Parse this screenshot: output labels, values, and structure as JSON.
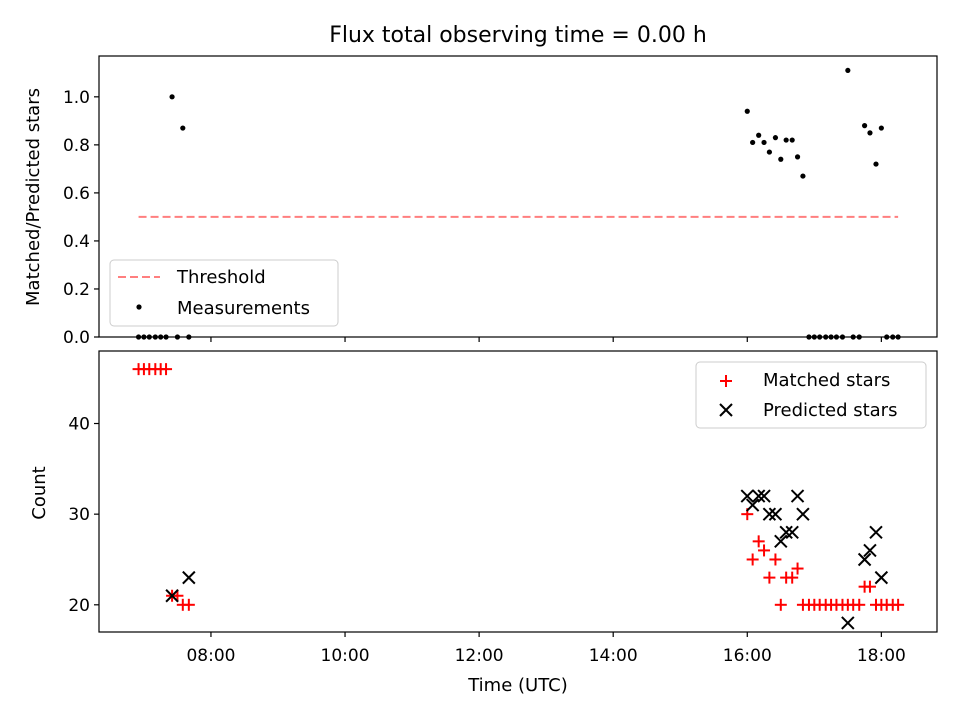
{
  "title": "Flux total observing time = 0.00 h",
  "colors": {
    "matched": "#ff0000",
    "predicted": "#000000",
    "threshold": "#ff7f7f",
    "measure": "#000000"
  },
  "chart_data": [
    {
      "type": "scatter",
      "ylabel": "Matched/Predicted stars",
      "ylim": [
        0,
        1.17
      ],
      "yticks": [
        "0.0",
        "0.2",
        "0.4",
        "0.6",
        "0.8",
        "1.0"
      ],
      "legend": {
        "position": "lower-left",
        "entries": [
          "Threshold",
          "Measurements"
        ]
      },
      "threshold": {
        "name": "Threshold",
        "value": 0.5,
        "x_start": 6.92,
        "x_end": 18.25
      },
      "series": [
        {
          "name": "Measurements",
          "x": [
            6.92,
            7.0,
            7.08,
            7.17,
            7.25,
            7.33,
            7.42,
            7.5,
            7.58,
            7.67,
            16.0,
            16.08,
            16.17,
            16.25,
            16.33,
            16.42,
            16.5,
            16.58,
            16.67,
            16.75,
            16.83,
            16.92,
            17.0,
            17.08,
            17.17,
            17.25,
            17.33,
            17.42,
            17.5,
            17.58,
            17.67,
            17.75,
            17.83,
            17.92,
            18.0,
            18.08,
            18.17,
            18.25
          ],
          "y": [
            0,
            0,
            0,
            0,
            0,
            0,
            1.0,
            0,
            0.87,
            0,
            0.94,
            0.81,
            0.84,
            0.81,
            0.77,
            0.83,
            0.74,
            0.82,
            0.82,
            0.75,
            0.67,
            0,
            0,
            0,
            0,
            0,
            0,
            0,
            1.11,
            0,
            0,
            0.88,
            0.85,
            0.72,
            0.87,
            0,
            0,
            0
          ]
        }
      ]
    },
    {
      "type": "scatter",
      "xlabel": "Time (UTC)",
      "ylabel": "Count",
      "xlim": [
        6.33,
        18.83
      ],
      "ylim": [
        17,
        48
      ],
      "xticks": [
        "08:00",
        "10:00",
        "12:00",
        "14:00",
        "16:00",
        "18:00"
      ],
      "yticks": [
        "20",
        "30",
        "40"
      ],
      "legend": {
        "position": "top-right",
        "entries": [
          "Matched stars",
          "Predicted stars"
        ]
      },
      "series": [
        {
          "name": "Matched stars",
          "x": [
            6.92,
            7.0,
            7.08,
            7.17,
            7.25,
            7.33,
            7.42,
            7.5,
            7.58,
            7.67,
            16.0,
            16.08,
            16.17,
            16.25,
            16.33,
            16.42,
            16.5,
            16.58,
            16.67,
            16.75,
            16.83,
            16.92,
            17.0,
            17.08,
            17.17,
            17.25,
            17.33,
            17.42,
            17.5,
            17.58,
            17.67,
            17.75,
            17.83,
            17.92,
            18.0,
            18.08,
            18.17,
            18.25
          ],
          "y": [
            46,
            46,
            46,
            46,
            46,
            46,
            21,
            21,
            20,
            20,
            30,
            25,
            27,
            26,
            23,
            25,
            20,
            23,
            23,
            24,
            20,
            20,
            20,
            20,
            20,
            20,
            20,
            20,
            20,
            20,
            20,
            22,
            22,
            20,
            20,
            20,
            20,
            20
          ]
        },
        {
          "name": "Predicted stars",
          "x": [
            7.42,
            7.67,
            16.0,
            16.08,
            16.17,
            16.25,
            16.33,
            16.42,
            16.5,
            16.58,
            16.67,
            16.75,
            16.83,
            17.5,
            17.75,
            17.83,
            17.92,
            18.0
          ],
          "y": [
            21,
            23,
            32,
            31,
            32,
            32,
            30,
            30,
            27,
            28,
            28,
            32,
            30,
            18,
            25,
            26,
            28,
            23
          ]
        }
      ]
    }
  ]
}
